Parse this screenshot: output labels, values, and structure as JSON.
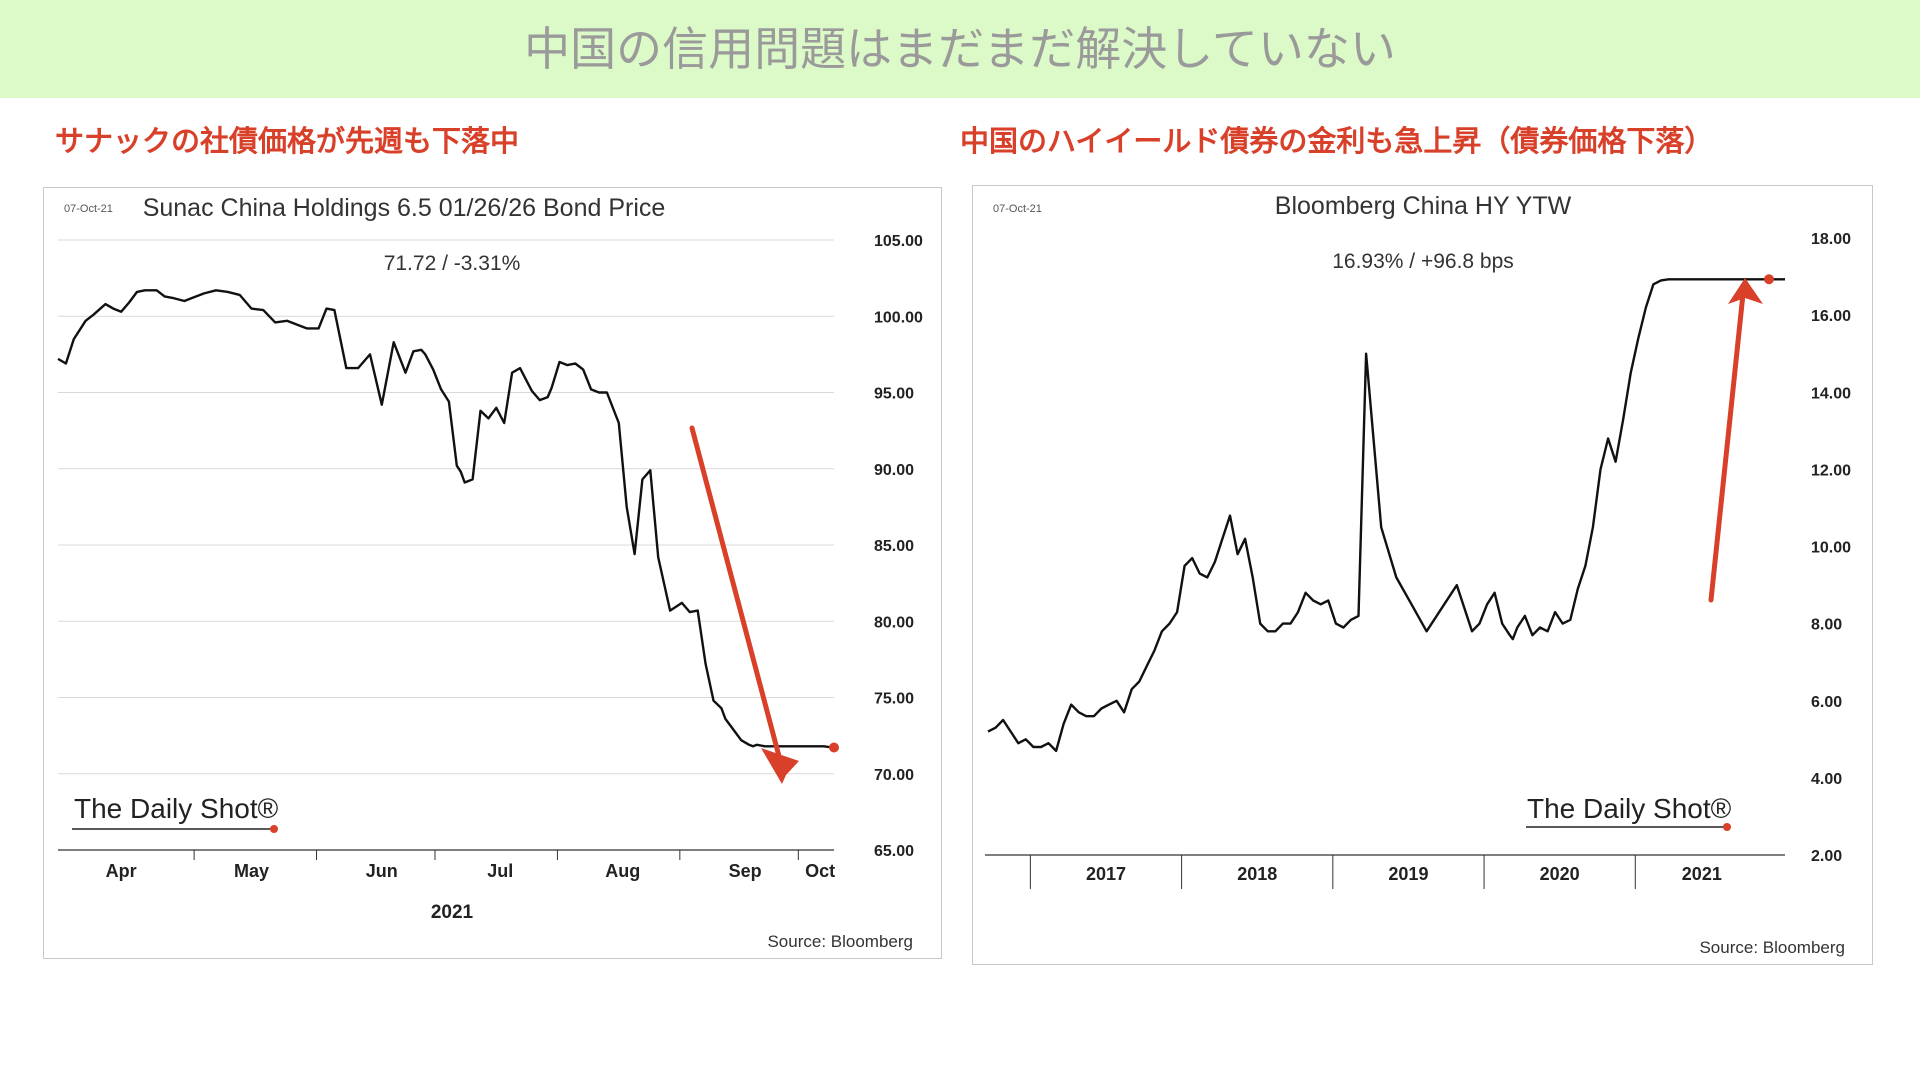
{
  "banner": {
    "title": "中国の信用問題はまだまだ解決していない",
    "bg": "#dcf9c8"
  },
  "captions": {
    "left": "サナックの社債価格が先週も下落中",
    "right": "中国のハイイールド債券の金利も急上昇（債券価格下落）"
  },
  "colors": {
    "accent": "#d8402a",
    "line": "#111111",
    "grid": "#d9d9d9"
  },
  "chart_data": [
    {
      "type": "line",
      "date_label": "07-Oct-21",
      "title": "Sunac China Holdings 6.5 01/26/26 Bond Price",
      "subtitle": "71.72  /  -3.31%",
      "xlabel": "2021",
      "ylabel": "",
      "ylim": [
        65,
        105
      ],
      "yticks": [
        "105.00",
        "100.00",
        "95.00",
        "90.00",
        "85.00",
        "80.00",
        "75.00",
        "70.00",
        "65.00"
      ],
      "ytick_values": [
        105,
        100,
        95,
        90,
        85,
        80,
        75,
        70,
        65
      ],
      "xticks": [
        "Apr",
        "May",
        "Jun",
        "Jul",
        "Aug",
        "Sep",
        "Oct"
      ],
      "grid": true,
      "logo": "The Daily Shot®",
      "source": "Source: Bloomberg",
      "annotation": "red downward arrow",
      "series": [
        {
          "x": [
            "2021-03-25",
            "2021-03-27",
            "2021-03-29",
            "2021-04-01",
            "2021-04-03",
            "2021-04-06",
            "2021-04-08",
            "2021-04-10",
            "2021-04-12",
            "2021-04-14",
            "2021-04-16",
            "2021-04-19",
            "2021-04-21",
            "2021-04-23",
            "2021-04-26",
            "2021-04-28",
            "2021-05-01",
            "2021-05-04",
            "2021-05-07",
            "2021-05-10",
            "2021-05-13",
            "2021-05-16",
            "2021-05-19",
            "2021-05-22",
            "2021-05-25",
            "2021-05-27",
            "2021-05-30",
            "2021-06-01",
            "2021-06-03",
            "2021-06-06",
            "2021-06-09",
            "2021-06-12",
            "2021-06-15",
            "2021-06-18",
            "2021-06-21",
            "2021-06-23",
            "2021-06-25",
            "2021-06-26",
            "2021-06-28",
            "2021-06-30",
            "2021-07-02",
            "2021-07-04",
            "2021-07-05",
            "2021-07-06",
            "2021-07-08",
            "2021-07-10",
            "2021-07-12",
            "2021-07-14",
            "2021-07-16",
            "2021-07-18",
            "2021-07-20",
            "2021-07-23",
            "2021-07-25",
            "2021-07-27",
            "2021-07-28",
            "2021-07-30",
            "2021-08-01",
            "2021-08-03",
            "2021-08-05",
            "2021-08-07",
            "2021-08-09",
            "2021-08-11",
            "2021-08-14",
            "2021-08-16",
            "2021-08-18",
            "2021-08-20",
            "2021-08-22",
            "2021-08-24",
            "2021-08-27",
            "2021-08-30",
            "2021-09-01",
            "2021-09-03",
            "2021-09-05",
            "2021-09-07",
            "2021-09-09",
            "2021-09-10",
            "2021-09-12",
            "2021-09-14",
            "2021-09-16",
            "2021-09-17",
            "2021-09-18",
            "2021-09-20",
            "2021-09-22",
            "2021-09-24",
            "2021-09-27",
            "2021-09-29",
            "2021-10-01",
            "2021-10-03",
            "2021-10-05",
            "2021-10-07"
          ],
          "y": [
            97.2,
            96.9,
            98.5,
            99.7,
            100.1,
            100.8,
            100.5,
            100.3,
            100.9,
            101.6,
            101.7,
            101.7,
            101.3,
            101.2,
            101.0,
            101.2,
            101.5,
            101.7,
            101.6,
            101.4,
            100.5,
            100.4,
            99.6,
            99.7,
            99.4,
            99.2,
            99.2,
            100.5,
            100.4,
            96.6,
            96.6,
            97.5,
            94.2,
            98.3,
            96.3,
            97.7,
            97.8,
            97.5,
            96.5,
            95.2,
            94.4,
            90.2,
            89.8,
            89.1,
            89.3,
            93.8,
            93.3,
            94.0,
            93.0,
            96.3,
            96.6,
            95.1,
            94.5,
            94.7,
            95.3,
            97.0,
            96.8,
            96.9,
            96.5,
            95.2,
            95.0,
            95.0,
            93.0,
            87.5,
            84.4,
            89.3,
            89.9,
            84.2,
            80.7,
            81.2,
            80.6,
            80.7,
            77.2,
            74.8,
            74.3,
            73.6,
            72.9,
            72.2,
            71.9,
            71.8,
            71.9,
            71.8,
            71.8,
            71.8,
            71.8,
            71.8,
            71.8,
            71.8,
            71.8,
            71.72
          ]
        }
      ]
    },
    {
      "type": "line",
      "date_label": "07-Oct-21",
      "title": "Bloomberg China HY YTW",
      "subtitle": "16.93%  /  +96.8 bps",
      "xlabel": "",
      "ylabel": "",
      "ylim": [
        2,
        18
      ],
      "yticks": [
        "18.00",
        "16.00",
        "14.00",
        "12.00",
        "10.00",
        "8.00",
        "6.00",
        "4.00",
        "2.00"
      ],
      "ytick_values": [
        18,
        16,
        14,
        12,
        10,
        8,
        6,
        4,
        2
      ],
      "xticks": [
        "2017",
        "2018",
        "2019",
        "2020",
        "2021"
      ],
      "grid": false,
      "logo": "The Daily Shot®",
      "source": "Source: Bloomberg",
      "annotation": "red upward arrow",
      "series": [
        {
          "x": [
            2016.5,
            2016.55,
            2016.6,
            2016.65,
            2016.7,
            2016.75,
            2016.8,
            2016.85,
            2016.9,
            2016.95,
            2017.0,
            2017.05,
            2017.1,
            2017.15,
            2017.2,
            2017.25,
            2017.3,
            2017.35,
            2017.4,
            2017.45,
            2017.5,
            2017.55,
            2017.6,
            2017.65,
            2017.7,
            2017.75,
            2017.8,
            2017.85,
            2017.9,
            2017.95,
            2018.0,
            2018.05,
            2018.1,
            2018.15,
            2018.2,
            2018.25,
            2018.3,
            2018.35,
            2018.4,
            2018.45,
            2018.5,
            2018.55,
            2018.6,
            2018.65,
            2018.7,
            2018.75,
            2018.8,
            2018.85,
            2018.9,
            2018.95,
            2019.0,
            2019.1,
            2019.2,
            2019.3,
            2019.4,
            2019.5,
            2019.6,
            2019.7,
            2019.75,
            2019.8,
            2019.85,
            2019.9,
            2019.95,
            2019.97,
            2020.0,
            2020.05,
            2020.1,
            2020.15,
            2020.2,
            2020.25,
            2020.3,
            2020.35,
            2020.4,
            2020.45,
            2020.5,
            2020.55,
            2020.6,
            2020.65,
            2020.7,
            2020.75,
            2020.8,
            2020.85,
            2020.9,
            2020.95,
            2021.0,
            2021.05,
            2021.1,
            2021.15,
            2021.2,
            2021.25,
            2021.3,
            2021.35,
            2021.4,
            2021.45,
            2021.5,
            2021.55,
            2021.6,
            2021.65,
            2021.7,
            2021.75,
            2021.77
          ],
          "y": [
            5.2,
            5.3,
            5.5,
            5.2,
            4.9,
            5.0,
            4.8,
            4.8,
            4.9,
            4.7,
            5.4,
            5.9,
            5.7,
            5.6,
            5.6,
            5.8,
            5.9,
            6.0,
            5.7,
            6.3,
            6.5,
            6.9,
            7.3,
            7.8,
            8.0,
            8.3,
            9.5,
            9.7,
            9.3,
            9.2,
            9.6,
            10.2,
            10.8,
            9.8,
            10.2,
            9.2,
            8.0,
            7.8,
            7.8,
            8.0,
            8.0,
            8.3,
            8.8,
            8.6,
            8.5,
            8.6,
            8.0,
            7.9,
            8.1,
            8.2,
            15.0,
            10.5,
            9.2,
            8.5,
            7.8,
            8.4,
            9.0,
            7.8,
            8.0,
            8.5,
            8.8,
            8.0,
            7.7,
            7.6,
            7.9,
            8.2,
            7.7,
            7.9,
            7.8,
            8.3,
            8.0,
            8.1,
            8.9,
            9.5,
            10.5,
            12.0,
            12.8,
            12.2,
            13.3,
            14.5,
            15.4,
            16.2,
            16.8,
            16.9,
            16.93,
            16.93,
            16.93,
            16.93,
            16.93,
            16.93,
            16.93,
            16.93,
            16.93,
            16.93,
            16.93,
            16.93,
            16.93,
            16.93,
            16.93,
            16.93,
            16.93
          ]
        }
      ]
    }
  ]
}
